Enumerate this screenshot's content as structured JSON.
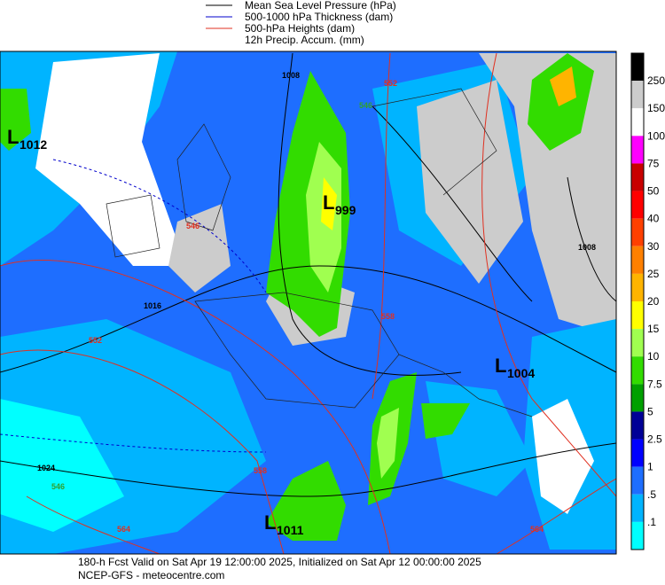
{
  "legend": [
    {
      "label": "Mean Sea Level Pressure (hPa)",
      "color": "#000000"
    },
    {
      "label": "500-1000 hPa Thickness (dam)",
      "color": "#0000cc"
    },
    {
      "label": "500-hPa Heights (dam)",
      "color": "#e03020"
    },
    {
      "label": "12h Precip. Accum. (mm)"
    }
  ],
  "colorbar": {
    "colors": [
      "#000000",
      "#cccccc",
      "#ffffff",
      "#ff00ff",
      "#c80000",
      "#ff0000",
      "#ff4000",
      "#ff8000",
      "#ffb400",
      "#ffff00",
      "#a0ff50",
      "#32dc00",
      "#00a000",
      "#000096",
      "#0000ff",
      "#1e6eff",
      "#00b4ff",
      "#00ffff",
      "#ffffff"
    ],
    "labels": [
      "250",
      "150",
      "100",
      "75",
      "50",
      "40",
      "30",
      "25",
      "20",
      "15",
      "10",
      "7.5",
      "5",
      "2.5",
      "1",
      ".5",
      ".1"
    ]
  },
  "lows": [
    {
      "symbol": "L",
      "value": "1012"
    },
    {
      "symbol": "L",
      "value": "999"
    },
    {
      "symbol": "L",
      "value": "1004"
    },
    {
      "symbol": "L",
      "value": "1011"
    }
  ],
  "contour_labels": [
    {
      "text": "1008",
      "color": "#000000"
    },
    {
      "text": "1008",
      "color": "#000000"
    },
    {
      "text": "1016",
      "color": "#000000"
    },
    {
      "text": "1024",
      "color": "#000000"
    },
    {
      "text": "546",
      "color": "#e03020"
    },
    {
      "text": "546",
      "color": "#30a030"
    },
    {
      "text": "546",
      "color": "#30a030"
    },
    {
      "text": "552",
      "color": "#e03020"
    },
    {
      "text": "552",
      "color": "#e03020"
    },
    {
      "text": "558",
      "color": "#e03020"
    },
    {
      "text": "558",
      "color": "#e03020"
    },
    {
      "text": "564",
      "color": "#e03020"
    },
    {
      "text": "564",
      "color": "#e03020"
    }
  ],
  "footer": {
    "line1": "180-h Fcst Valid on Sat Apr 19 12:00:00 2025, Initialized on Sat Apr 12 00:00:00 2025",
    "line2": "NCEP-GFS  - meteocentre.com"
  }
}
